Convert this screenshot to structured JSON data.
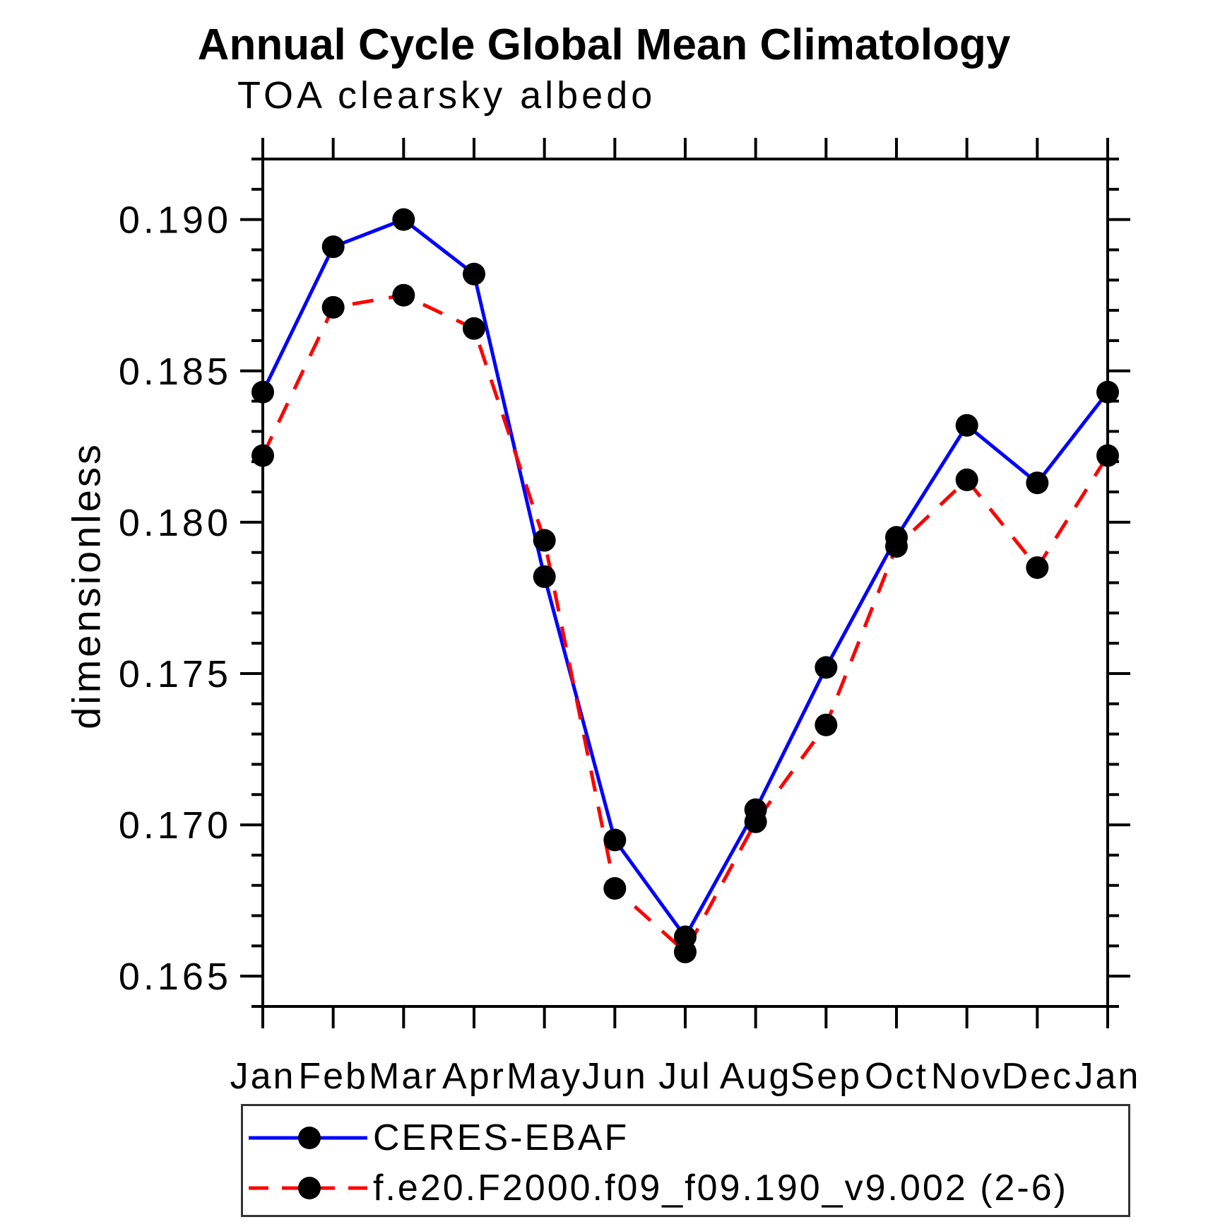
{
  "title": "Annual Cycle Global Mean Climatology",
  "chart_data": {
    "type": "line",
    "title": "Annual Cycle Global Mean Climatology",
    "subtitle": "TOA clearsky albedo",
    "xlabel": "",
    "ylabel": "dimensionless",
    "categories": [
      "Jan",
      "Feb",
      "Mar",
      "Apr",
      "May",
      "Jun",
      "Jul",
      "Aug",
      "Sep",
      "Oct",
      "Nov",
      "Dec",
      "Jan"
    ],
    "ylim": [
      0.164,
      0.192
    ],
    "ytick_major": [
      0.165,
      0.17,
      0.175,
      0.18,
      0.185,
      0.19
    ],
    "ytick_labels": [
      "0.165",
      "0.170",
      "0.175",
      "0.180",
      "0.185",
      "0.190"
    ],
    "ytick_minor_step": 0.001,
    "grid": false,
    "legend_position": "bottom-left",
    "axis_color": "#000000",
    "marker_color": "#000000",
    "series": [
      {
        "name": "CERES-EBAF",
        "color": "#0000ff",
        "style": "solid",
        "marker": "circle",
        "values": [
          0.1843,
          0.1891,
          0.19,
          0.1882,
          0.1782,
          0.1695,
          0.1663,
          0.1705,
          0.1752,
          0.1795,
          0.1832,
          0.1813,
          0.1843
        ]
      },
      {
        "name": "f.e20.F2000.f09_f09.190_v9.002 (2-6)",
        "color": "#ff0000",
        "style": "dashed",
        "marker": "circle",
        "values": [
          0.1822,
          0.1871,
          0.1875,
          0.1864,
          0.1794,
          0.1679,
          0.1658,
          0.1701,
          0.1733,
          0.1792,
          0.1814,
          0.1785,
          0.1822
        ]
      }
    ]
  }
}
